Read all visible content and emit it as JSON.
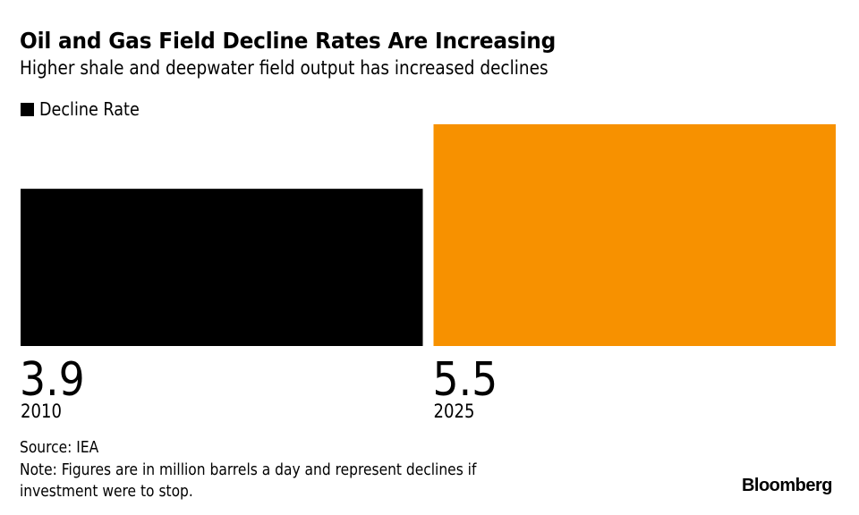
{
  "header": {
    "title": "Oil and Gas Field Decline Rates Are Increasing",
    "subtitle": "Higher shale and deepwater field output has increased declines"
  },
  "chart_data": {
    "type": "bar",
    "title": "Oil and Gas Field Decline Rates Are Increasing",
    "subtitle": "Higher shale and deepwater field output has increased declines",
    "categories": [
      "2010",
      "2025"
    ],
    "series": [
      {
        "name": "Decline Rate",
        "values": [
          3.9,
          5.5
        ]
      }
    ],
    "value_labels": [
      "3.9",
      "5.5"
    ],
    "bar_colors": [
      "#000000",
      "#f79100"
    ],
    "legend": {
      "entries": [
        "Decline Rate"
      ],
      "color": "#000000",
      "placement": "top-left"
    },
    "xlabel": "",
    "ylabel": "",
    "ylim": [
      0,
      5.5
    ],
    "grid": false
  },
  "footer": {
    "source": "Source: IEA",
    "note_line1": "Note: Figures are in million barrels a day and represent declines if",
    "note_line2": "investment were to stop.",
    "logo": "Bloomberg"
  }
}
